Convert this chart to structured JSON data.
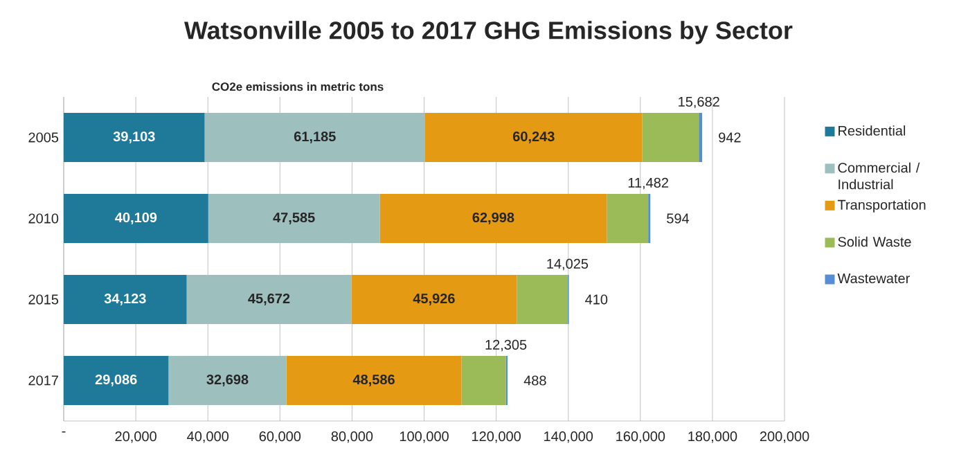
{
  "chart_data": {
    "type": "bar",
    "orientation": "horizontal",
    "stacked": true,
    "title": "Watsonville 2005 to 2017 GHG Emissions by Sector",
    "subtitle": "CO2e emissions in metric tons",
    "categories": [
      "2005",
      "2010",
      "2015",
      "2017"
    ],
    "series": [
      {
        "name": "Residential",
        "color": "#1f7a99",
        "values": [
          39103,
          40109,
          34123,
          29086
        ],
        "value_labels": [
          "39,103",
          "40,109",
          "34,123",
          "29,086"
        ]
      },
      {
        "name": "Commercial / Industrial",
        "color": "#9dbfbe",
        "values": [
          61185,
          47585,
          45672,
          32698
        ],
        "value_labels": [
          "61,185",
          "47,585",
          "45,672",
          "32,698"
        ]
      },
      {
        "name": "Transportation",
        "color": "#e59a14",
        "values": [
          60243,
          62998,
          45926,
          48586
        ],
        "value_labels": [
          "60,243",
          "62,998",
          "45,926",
          "48,586"
        ]
      },
      {
        "name": "Solid Waste",
        "color": "#9bbb59",
        "values": [
          15682,
          11482,
          14025,
          12305
        ],
        "value_labels": [
          "15,682",
          "11,482",
          "14,025",
          "12,305"
        ]
      },
      {
        "name": "Wastewater",
        "color": "#558ed5",
        "values": [
          942,
          594,
          410,
          488
        ],
        "value_labels": [
          "942",
          "594",
          "410",
          "488"
        ]
      }
    ],
    "xlim": [
      0,
      200000
    ],
    "xticks": [
      {
        "value": 0,
        "label": "-"
      },
      {
        "value": 20000,
        "label": "20,000"
      },
      {
        "value": 40000,
        "label": "40,000"
      },
      {
        "value": 60000,
        "label": "60,000"
      },
      {
        "value": 80000,
        "label": "80,000"
      },
      {
        "value": 100000,
        "label": "100,000"
      },
      {
        "value": 120000,
        "label": "120,000"
      },
      {
        "value": 140000,
        "label": "140,000"
      },
      {
        "value": 160000,
        "label": "160,000"
      },
      {
        "value": 180000,
        "label": "180,000"
      },
      {
        "value": 200000,
        "label": "200,000"
      }
    ],
    "grid": "x",
    "legend": "right"
  }
}
